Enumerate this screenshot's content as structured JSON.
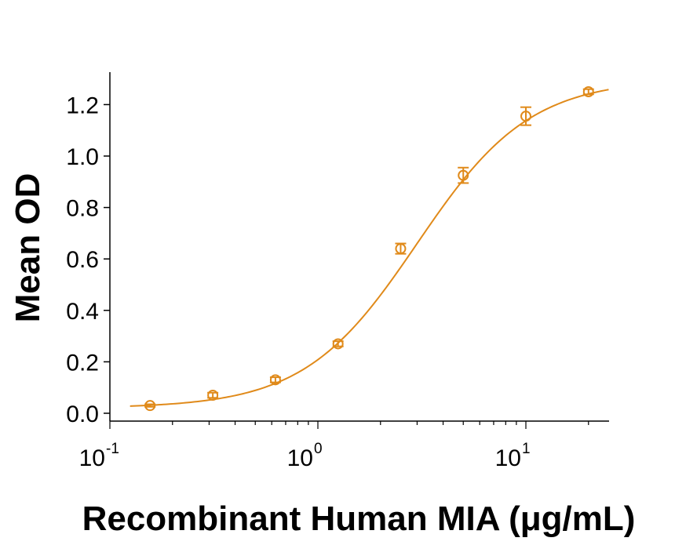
{
  "chart_data": {
    "type": "scatter",
    "title": "",
    "xlabel": "Recombinant Human MIA (μg/mL)",
    "ylabel": "Mean OD",
    "xscale": "log",
    "xlim": [
      0.125,
      25
    ],
    "ylim": [
      0,
      1.3
    ],
    "yticks": [
      0.0,
      0.2,
      0.4,
      0.6,
      0.8,
      1.0,
      1.2
    ],
    "ytick_labels": [
      "0.0",
      "0.2",
      "0.4",
      "0.6",
      "0.8",
      "1.0",
      "1.2"
    ],
    "xticks": [
      {
        "value": 0.1,
        "base": "10",
        "exp": "-1"
      },
      {
        "value": 1,
        "base": "10",
        "exp": "0"
      },
      {
        "value": 10,
        "base": "10",
        "exp": "1"
      }
    ],
    "grid": false,
    "legend": "none",
    "color": "#E08A1A",
    "series": [
      {
        "x": [
          0.156,
          0.3125,
          0.625,
          1.25,
          2.5,
          5,
          10,
          20
        ],
        "y": [
          0.03,
          0.07,
          0.13,
          0.27,
          0.64,
          0.925,
          1.155,
          1.25
        ],
        "error": [
          0.005,
          0.01,
          0.01,
          0.01,
          0.02,
          0.03,
          0.035,
          0.01
        ],
        "fit": "4PL",
        "fit_params": {
          "bottom": 0.02,
          "top": 1.3,
          "ec50": 3.0,
          "hill": 1.6
        }
      }
    ]
  }
}
